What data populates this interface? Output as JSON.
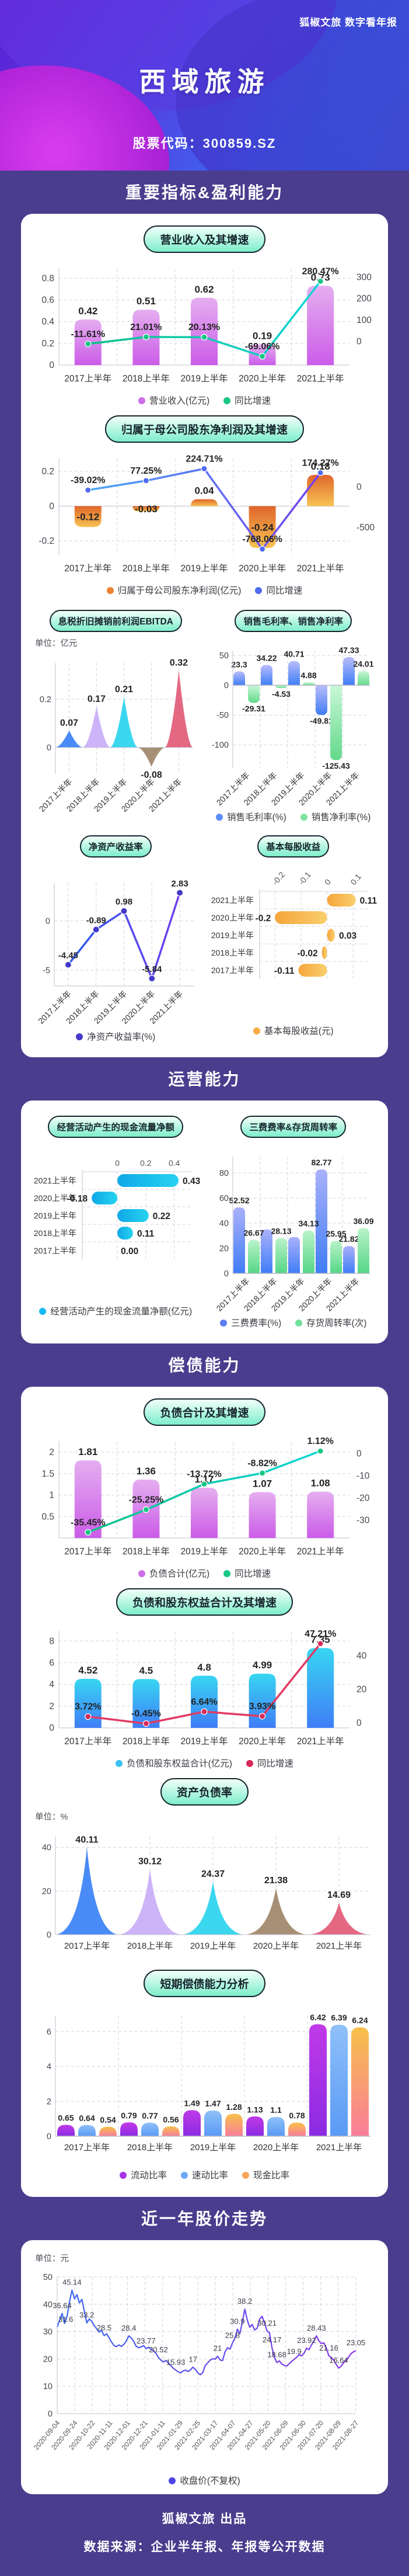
{
  "header": {
    "brand": "狐椒文旅 数字看年报",
    "title": "西域旅游",
    "stock_code": "股票代码：300859.SZ"
  },
  "sections": {
    "s1": "重要指标&盈利能力",
    "s2": "运营能力",
    "s3": "偿债能力",
    "s4": "近一年股价走势"
  },
  "footer": {
    "line1": "狐椒文旅 出品",
    "line2": "数据来源：企业半年报、年报等公开数据"
  },
  "categories": [
    "2017上半年",
    "2018上半年",
    "2019上半年",
    "2020上半年",
    "2021上半年"
  ],
  "colors": {
    "page_bg": "#4a3d8e",
    "card_bg": "#ffffff",
    "pill_from": "#f2fff9",
    "pill_to": "#7deecb",
    "hero_blue": "#3b86f7",
    "hero_purple": "#5b21d6",
    "hero_magenta": "#e13ef0"
  },
  "chart_data": [
    {
      "key": "revenue",
      "type": "bar+line",
      "title": "营业收入及其增速",
      "bar": {
        "name": "营业收入(亿元)",
        "values": [
          0.42,
          0.51,
          0.62,
          0.19,
          0.73
        ],
        "grad": [
          "#e5aef0",
          "#cb5ce8"
        ],
        "dot": "#cf6ee8"
      },
      "line": {
        "name": "同比增速",
        "values": [
          -11.61,
          21.01,
          20.13,
          -69.06,
          280.47
        ],
        "pct": true,
        "grad": [
          "#0fbf7f",
          "#10d8e0"
        ],
        "dot": "#16c784"
      },
      "left_axis": {
        "ticks": [
          0,
          0.2,
          0.4,
          0.6,
          0.8
        ],
        "min": 0,
        "max": 0.85
      },
      "right_axis": {
        "ticks": [
          300,
          200,
          100,
          0
        ],
        "min": -110,
        "max": 320
      }
    },
    {
      "key": "profit",
      "type": "bar+line",
      "title": "归属于母公司股东净利润及其增速",
      "bar": {
        "name": "归属于母公司股东净利润(亿元)",
        "values": [
          -0.12,
          -0.03,
          0.04,
          -0.24,
          0.18
        ],
        "grad": [
          "#e0662c",
          "#f7c353"
        ],
        "dot": "#ec8233"
      },
      "line": {
        "name": "同比增速",
        "values": [
          -39.02,
          77.25,
          224.71,
          -768.06,
          174.27
        ],
        "pct": true,
        "grad": [
          "#44b8f5",
          "#7b2ff0"
        ],
        "dot": "#4f6af0"
      },
      "left_axis": {
        "ticks": [
          0.2,
          0,
          -0.2
        ],
        "min": -0.28,
        "max": 0.25
      },
      "right_axis": {
        "ticks": [
          0,
          -500
        ],
        "min": -840,
        "max": 300
      }
    },
    {
      "key": "ebitda",
      "type": "spike",
      "title": "息税折旧摊销前利润EBITDA",
      "unit": "单位：亿元",
      "values": [
        0.07,
        0.17,
        0.21,
        -0.08,
        0.32
      ],
      "colors": [
        "#3b82f6",
        "#c9aef7",
        "#2bd4ee",
        "#a0866b",
        "#e25c78"
      ],
      "axis": {
        "ticks": [
          0,
          0.2
        ],
        "min": -0.11,
        "max": 0.35
      }
    },
    {
      "key": "margins",
      "type": "grouped-bar",
      "title": "销售毛利率、销售净利率",
      "series": [
        {
          "name": "销售毛利率(%)",
          "values": [
            23.3,
            34.22,
            40.71,
            -49.81,
            47.33
          ],
          "grad": [
            "#b9bdfb",
            "#3f7df6"
          ],
          "dot": "#5b8df7"
        },
        {
          "name": "销售净利率(%)",
          "values": [
            -29.31,
            -4.53,
            4.88,
            -125.43,
            24.01
          ],
          "grad": [
            "#c9f7d8",
            "#62d98a"
          ],
          "dot": "#7fe3a1"
        }
      ],
      "axis": {
        "ticks": [
          50,
          0,
          -50,
          -100
        ],
        "min": -138,
        "max": 58
      }
    },
    {
      "key": "roe",
      "type": "line",
      "title": "净资产收益率",
      "series": [
        {
          "name": "净资产收益率(%)",
          "values": [
            -4.45,
            -0.89,
            0.98,
            -5.84,
            2.83
          ],
          "grad": [
            "#2563eb",
            "#7c3aed"
          ],
          "dot": "#4338ca"
        }
      ],
      "axis": {
        "ticks": [
          0,
          -5
        ],
        "min": -6.6,
        "max": 3.8
      }
    },
    {
      "key": "eps",
      "type": "hbar",
      "title": "基本每股收益",
      "categories": [
        "2021上半年",
        "2020上半年",
        "2019上半年",
        "2018上半年",
        "2017上半年"
      ],
      "series": [
        {
          "name": "基本每股收益(元)",
          "values": [
            0.11,
            -0.2,
            0.03,
            -0.02,
            -0.11
          ],
          "grad": [
            "#f6a53c",
            "#f9cf6e"
          ],
          "dot": "#f7ab42"
        }
      ],
      "axis": {
        "ticks": [
          -0.2,
          -0.1,
          0,
          0.1
        ],
        "min": -0.25,
        "max": 0.16,
        "rotated_ticks": true
      }
    },
    {
      "key": "cashflow",
      "type": "hbar",
      "title": "经营活动产生的现金流量净额",
      "categories": [
        "2021上半年",
        "2020上半年",
        "2019上半年",
        "2018上半年",
        "2017上半年"
      ],
      "series": [
        {
          "name": "经营活动产生的现金流量净额(亿元)",
          "values": [
            0.43,
            -0.18,
            0.22,
            0.11,
            0
          ],
          "labels": [
            "0.43",
            "-0.18",
            "0.22",
            "0.11",
            "0.00"
          ],
          "grad": [
            "#10a8e8",
            "#27d3f0"
          ],
          "dot": "#18b8f0"
        }
      ],
      "axis": {
        "ticks": [
          0,
          0.2,
          0.4
        ],
        "min": -0.23,
        "max": 0.52
      }
    },
    {
      "key": "fees",
      "type": "grouped-bar",
      "title": "三费费率&存货周转率",
      "series": [
        {
          "name": "三费费率(%)",
          "values": [
            52.52,
            35,
            29,
            82.77,
            21.82
          ],
          "labels": [
            "52.52",
            "",
            "",
            "82.77",
            "21.82"
          ],
          "grad": [
            "#aab1fa",
            "#3f7df6"
          ],
          "dot": "#5b7df5"
        },
        {
          "name": "存货周转率(次)",
          "values": [
            26.67,
            28.13,
            34.13,
            25.95,
            36.09
          ],
          "grad": [
            "#b9f3c9",
            "#55d687"
          ],
          "dot": "#72e09a"
        }
      ],
      "axis": {
        "ticks": [
          0,
          20,
          40,
          60,
          80
        ],
        "min": 0,
        "max": 93
      }
    },
    {
      "key": "debt",
      "type": "bar+line",
      "title": "负债合计及其增速",
      "bar": {
        "name": "负债合计(亿元)",
        "values": [
          1.81,
          1.36,
          1.17,
          1.07,
          1.08
        ],
        "grad": [
          "#e5aef0",
          "#cb5ce8"
        ],
        "dot": "#cf6ee8"
      },
      "line": {
        "name": "同比增速",
        "values": [
          -35.45,
          -25.25,
          -13.72,
          -8.82,
          1.12
        ],
        "pct": true,
        "grad": [
          "#0fbf7f",
          "#10d8e0"
        ],
        "dot": "#16c784"
      },
      "left_axis": {
        "ticks": [
          0.5,
          1,
          1.5,
          2
        ],
        "min": 0,
        "max": 2.15
      },
      "right_axis": {
        "ticks": [
          0,
          -10,
          -20,
          -30
        ],
        "min": -38,
        "max": 3.5
      }
    },
    {
      "key": "liabequity",
      "type": "bar+line",
      "title": "负债和股东权益合计及其增速",
      "bar": {
        "name": "负债和股东权益合计(亿元)",
        "values": [
          4.52,
          4.5,
          4.8,
          4.99,
          7.35
        ],
        "grad": [
          "#38d6f2",
          "#3f7df6"
        ],
        "dot": "#38c0f0"
      },
      "line": {
        "name": "同比增速",
        "values": [
          3.72,
          -0.45,
          6.64,
          3.93,
          47.21
        ],
        "pct": true,
        "grad": [
          "#e23a63",
          "#e23a63"
        ],
        "dot": "#d92b5a"
      },
      "left_axis": {
        "ticks": [
          0,
          2,
          4,
          6,
          8
        ],
        "min": 0,
        "max": 8.5
      },
      "right_axis": {
        "ticks": [
          0,
          20,
          40
        ],
        "min": -3,
        "max": 52
      }
    },
    {
      "key": "assetliab",
      "type": "spike",
      "title": "资产负债率",
      "unit": "单位：%",
      "values": [
        40.11,
        30.12,
        24.37,
        21.38,
        14.69
      ],
      "colors": [
        "#3b82f6",
        "#c9aef7",
        "#2bd4ee",
        "#a0866b",
        "#e25c78"
      ],
      "axis": {
        "ticks": [
          0,
          20,
          40
        ],
        "min": 0,
        "max": 45
      },
      "horizontal_cats": true
    },
    {
      "key": "shortterm",
      "type": "grouped-bar",
      "title": "短期偿债能力分析",
      "series": [
        {
          "name": "流动比率",
          "values": [
            0.65,
            0.79,
            1.49,
            1.13,
            6.42
          ],
          "grad": [
            "#c13ae8",
            "#8a2be2"
          ],
          "dot": "#a832e8"
        },
        {
          "name": "速动比率",
          "values": [
            0.64,
            0.77,
            1.47,
            1.1,
            6.39
          ],
          "grad": [
            "#8fc0f8",
            "#5a9af6"
          ],
          "dot": "#6aaaf8"
        },
        {
          "name": "现金比率",
          "values": [
            0.54,
            0.56,
            1.28,
            0.78,
            6.24
          ],
          "grad": [
            "#f8c04a",
            "#f87d9a"
          ],
          "dot": "#f8a55a"
        }
      ],
      "axis": {
        "ticks": [
          0,
          2,
          4,
          6
        ],
        "min": 0,
        "max": 6.9
      },
      "horizontal_cats": true
    },
    {
      "key": "price",
      "type": "line-stock",
      "title": "近一年股价走势",
      "unit": "单位：元",
      "series_name": "收盘价(不复权)",
      "dot": "#4f46e5",
      "grad": [
        "#3b6af5",
        "#8b35e8"
      ],
      "y_axis": {
        "ticks": [
          0,
          10,
          20,
          30,
          40,
          50
        ],
        "min": 0,
        "max": 50
      },
      "dates": [
        "2020-09-04",
        "2020-09-24",
        "2020-10-22",
        "2020-11-11",
        "2020-12-01",
        "2020-12-21",
        "2021-01-11",
        "2021-01-29",
        "2021-02-25",
        "2021-03-17",
        "2021-04-07",
        "2021-04-27",
        "2021-05-20",
        "2021-06-09",
        "2021-06-30",
        "2021-07-20",
        "2021-08-09",
        "2021-08-27"
      ],
      "values": [
        31.6,
        34.2,
        36.64,
        33.0,
        35.5,
        41.0,
        45.14,
        42.0,
        43.5,
        40.5,
        41.8,
        37.5,
        33.2,
        34.6,
        33.8,
        32.2,
        31.0,
        29.8,
        30.4,
        28.5,
        29.2,
        27.8,
        26.2,
        24.9,
        24.5,
        25.1,
        24.6,
        25.3,
        26.6,
        28.4,
        27.7,
        26.4,
        24.6,
        24.1,
        24.4,
        24.9,
        23.77,
        24.3,
        23.6,
        22.9,
        22.1,
        20.52,
        19.6,
        18.9,
        19.4,
        18.6,
        17.6,
        16.6,
        15.93,
        15.3,
        14.9,
        15.6,
        15.9,
        15.4,
        16.0,
        17.0,
        16.1,
        14.9,
        14.2,
        15.1,
        17.6,
        18.6,
        19.6,
        20.1,
        19.9,
        21.0,
        19.6,
        19.4,
        22.6,
        24.1,
        23.6,
        25.8,
        27.6,
        30.9,
        29.2,
        33.6,
        38.2,
        34.2,
        31.6,
        32.6,
        30.6,
        31.2,
        34.6,
        35.6,
        33.1,
        30.21,
        29.6,
        24.17,
        20.6,
        18.68,
        19.3,
        18.1,
        17.6,
        17.4,
        18.3,
        19.1,
        19.9,
        20.6,
        21.6,
        21.1,
        22.1,
        23.92,
        23.4,
        25.1,
        26.6,
        28.43,
        26.6,
        25.6,
        25.9,
        24.1,
        21.16,
        20.6,
        19.6,
        18.1,
        16.64,
        17.3,
        18.6,
        19.4,
        20.6,
        21.9,
        22.6,
        23.05
      ],
      "annotations": [
        {
          "i": 0,
          "label": "31.6"
        },
        {
          "i": 2,
          "label": "36.64"
        },
        {
          "i": 6,
          "label": "45.14"
        },
        {
          "i": 12,
          "label": "33.2"
        },
        {
          "i": 19,
          "label": "28.5"
        },
        {
          "i": 29,
          "label": "28.4"
        },
        {
          "i": 36,
          "label": "23.77"
        },
        {
          "i": 41,
          "label": "20.52"
        },
        {
          "i": 48,
          "label": "15.93"
        },
        {
          "i": 55,
          "label": "17"
        },
        {
          "i": 65,
          "label": "21"
        },
        {
          "i": 71,
          "label": "25.8"
        },
        {
          "i": 73,
          "label": "30.9"
        },
        {
          "i": 76,
          "label": "38.2"
        },
        {
          "i": 85,
          "label": "30.21"
        },
        {
          "i": 87,
          "label": "24.17"
        },
        {
          "i": 89,
          "label": "18.68"
        },
        {
          "i": 96,
          "label": "19.9"
        },
        {
          "i": 101,
          "label": "23.92"
        },
        {
          "i": 105,
          "label": "28.43"
        },
        {
          "i": 110,
          "label": "21.16"
        },
        {
          "i": 114,
          "label": "16.64"
        },
        {
          "i": 121,
          "label": "23.05"
        }
      ]
    }
  ]
}
